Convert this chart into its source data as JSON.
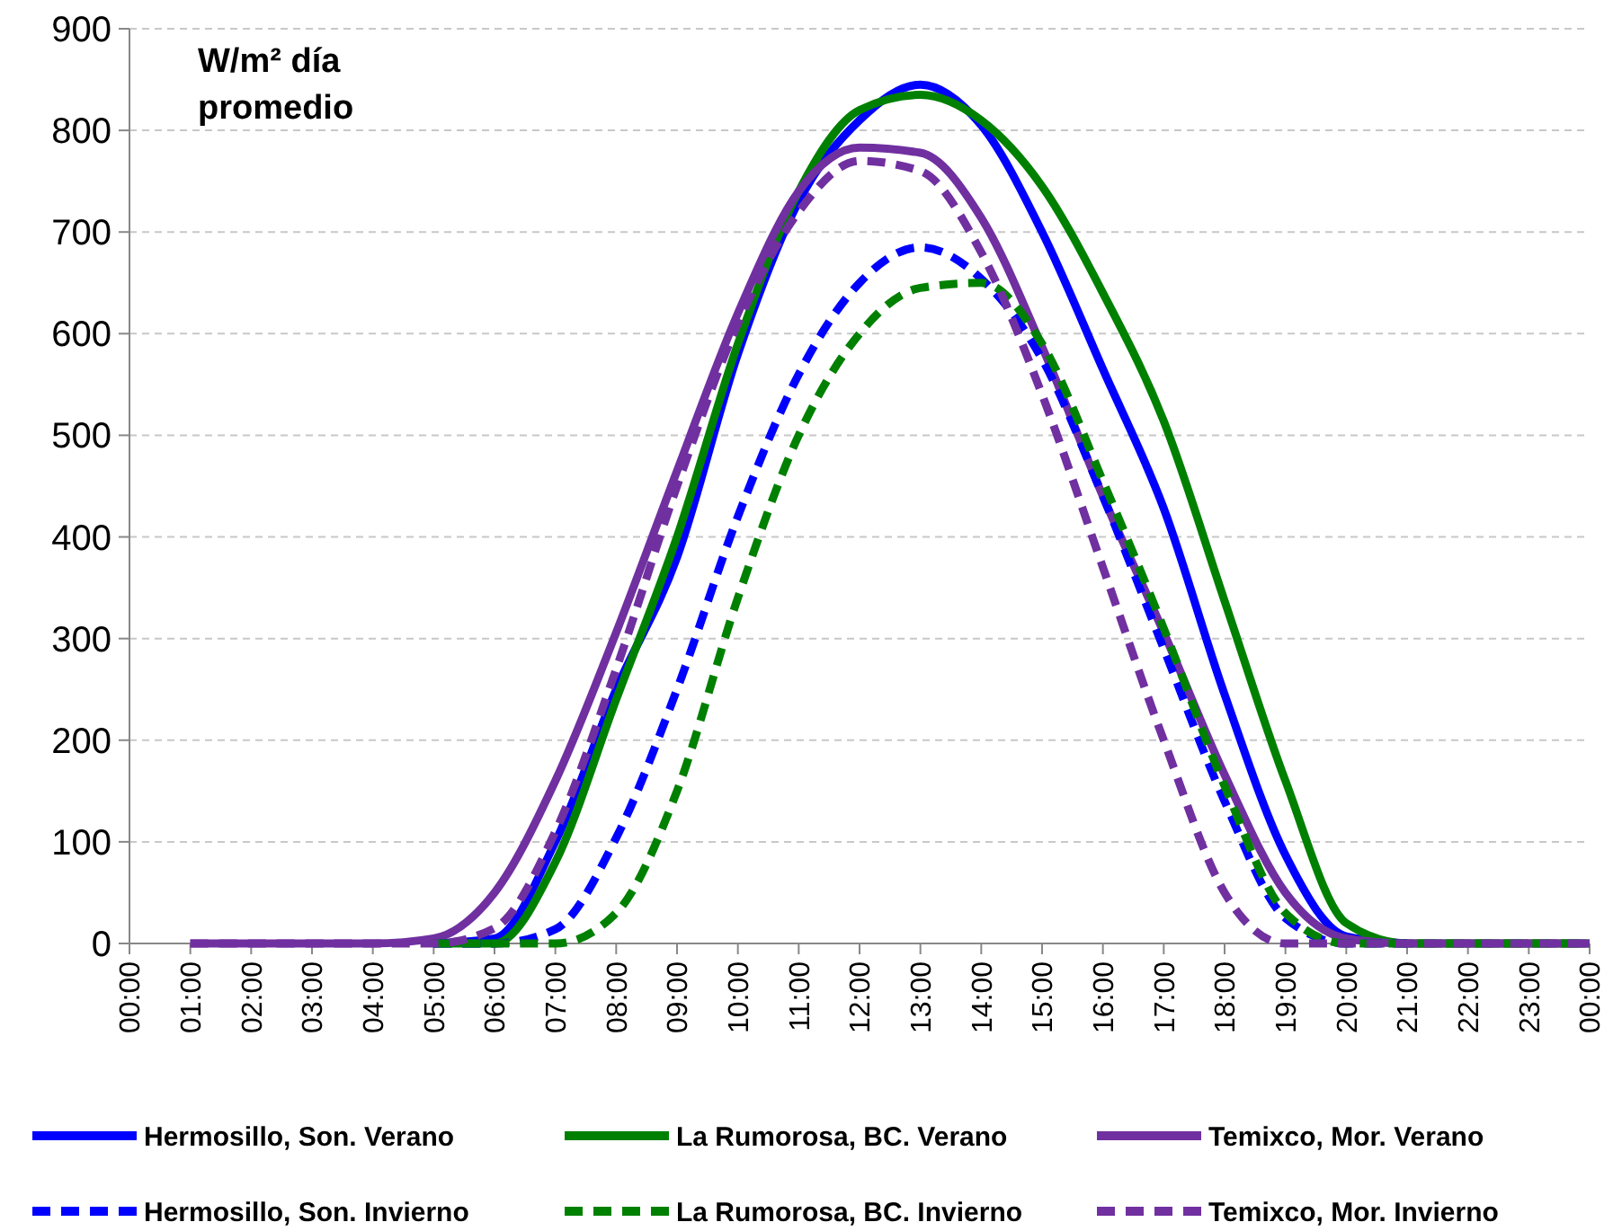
{
  "chart_data": {
    "type": "line",
    "ylabel": "W/m² día promedio",
    "x": [
      1,
      2,
      3,
      4,
      5,
      6,
      7,
      8,
      9,
      10,
      11,
      12,
      13,
      14,
      15,
      16,
      17,
      18,
      19,
      20,
      21,
      22,
      23,
      24
    ],
    "xlim": [
      0,
      24
    ],
    "xticks": [
      {
        "value": 0,
        "label": "00:00"
      },
      {
        "value": 1,
        "label": "01:00"
      },
      {
        "value": 2,
        "label": "02:00"
      },
      {
        "value": 3,
        "label": "03:00"
      },
      {
        "value": 4,
        "label": "04:00"
      },
      {
        "value": 5,
        "label": "05:00"
      },
      {
        "value": 6,
        "label": "06:00"
      },
      {
        "value": 7,
        "label": "07:00"
      },
      {
        "value": 8,
        "label": "08:00"
      },
      {
        "value": 9,
        "label": "09:00"
      },
      {
        "value": 10,
        "label": "10:00"
      },
      {
        "value": 11,
        "label": "11:00"
      },
      {
        "value": 12,
        "label": "12:00"
      },
      {
        "value": 13,
        "label": "13:00"
      },
      {
        "value": 14,
        "label": "14:00"
      },
      {
        "value": 15,
        "label": "15:00"
      },
      {
        "value": 16,
        "label": "16:00"
      },
      {
        "value": 17,
        "label": "17:00"
      },
      {
        "value": 18,
        "label": "18:00"
      },
      {
        "value": 19,
        "label": "19:00"
      },
      {
        "value": 20,
        "label": "20:00"
      },
      {
        "value": 21,
        "label": "21:00"
      },
      {
        "value": 22,
        "label": "22:00"
      },
      {
        "value": 23,
        "label": "23:00"
      },
      {
        "value": 24,
        "label": "00:00"
      }
    ],
    "ylim": [
      0,
      900
    ],
    "yticks": [
      0,
      100,
      200,
      300,
      400,
      500,
      600,
      700,
      800,
      900
    ],
    "grid": "y",
    "legend": "bottom",
    "marker": "none",
    "series": [
      {
        "name": "Hermosillo, Son. Verano",
        "color": "#0000ff",
        "line_style": "solid",
        "values": [
          null,
          null,
          null,
          null,
          0,
          5,
          100,
          250,
          380,
          580,
          730,
          810,
          845,
          805,
          700,
          565,
          428,
          245,
          87,
          7,
          0,
          null,
          null,
          null
        ]
      },
      {
        "name": "La Rumorosa, BC. Verano",
        "color": "#008000",
        "line_style": "solid",
        "values": [
          null,
          null,
          null,
          null,
          0,
          0,
          80,
          240,
          400,
          590,
          740,
          820,
          835,
          810,
          745,
          640,
          514,
          337,
          160,
          20,
          0,
          0,
          0,
          0
        ]
      },
      {
        "name": "Temixco, Mor. Verano",
        "color": "#7030a0",
        "line_style": "solid",
        "values": [
          0,
          0,
          0,
          0,
          5,
          50,
          160,
          306,
          465,
          620,
          740,
          783,
          778,
          714,
          587,
          440,
          306,
          166,
          50,
          5,
          0,
          0,
          0,
          0
        ]
      },
      {
        "name": "Hermosillo, Son. Invierno",
        "color": "#0000ff",
        "line_style": "dashed",
        "values": [
          null,
          null,
          null,
          null,
          0,
          0,
          14,
          104,
          250,
          420,
          560,
          650,
          685,
          654,
          575,
          440,
          290,
          140,
          25,
          0,
          0,
          null,
          null,
          null
        ]
      },
      {
        "name": "La Rumorosa, BC. Invierno",
        "color": "#008000",
        "line_style": "dashed",
        "values": [
          null,
          null,
          null,
          null,
          0,
          0,
          0,
          30,
          150,
          340,
          500,
          600,
          645,
          650,
          590,
          455,
          310,
          155,
          30,
          0,
          0,
          0,
          0,
          0
        ]
      },
      {
        "name": "Temixco, Mor. Invierno",
        "color": "#7030a0",
        "line_style": "dashed",
        "values": [
          0,
          0,
          0,
          0,
          0,
          15,
          110,
          270,
          450,
          610,
          720,
          770,
          760,
          680,
          540,
          370,
          200,
          50,
          0,
          0,
          0,
          0,
          0,
          0
        ]
      }
    ]
  }
}
